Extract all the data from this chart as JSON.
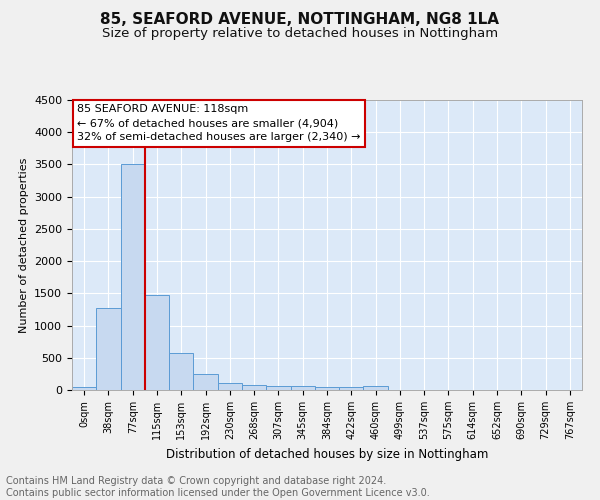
{
  "title": "85, SEAFORD AVENUE, NOTTINGHAM, NG8 1LA",
  "subtitle": "Size of property relative to detached houses in Nottingham",
  "xlabel": "Distribution of detached houses by size in Nottingham",
  "ylabel": "Number of detached properties",
  "bar_labels": [
    "0sqm",
    "38sqm",
    "77sqm",
    "115sqm",
    "153sqm",
    "192sqm",
    "230sqm",
    "268sqm",
    "307sqm",
    "345sqm",
    "384sqm",
    "422sqm",
    "460sqm",
    "499sqm",
    "537sqm",
    "575sqm",
    "614sqm",
    "652sqm",
    "690sqm",
    "729sqm",
    "767sqm"
  ],
  "bar_values": [
    50,
    1280,
    3500,
    1480,
    580,
    255,
    115,
    75,
    55,
    55,
    50,
    50,
    60,
    0,
    0,
    0,
    0,
    0,
    0,
    0,
    0
  ],
  "bar_color": "#c7d9f0",
  "bar_edge_color": "#5b9bd5",
  "ylim": [
    0,
    4500
  ],
  "yticks": [
    0,
    500,
    1000,
    1500,
    2000,
    2500,
    3000,
    3500,
    4000,
    4500
  ],
  "red_line_x": 2.5,
  "annotation_line1": "85 SEAFORD AVENUE: 118sqm",
  "annotation_line2": "← 67% of detached houses are smaller (4,904)",
  "annotation_line3": "32% of semi-detached houses are larger (2,340) →",
  "annotation_box_color": "#ffffff",
  "annotation_box_edge_color": "#cc0000",
  "footer_text": "Contains HM Land Registry data © Crown copyright and database right 2024.\nContains public sector information licensed under the Open Government Licence v3.0.",
  "background_color": "#dce9f8",
  "grid_color": "#ffffff",
  "fig_background": "#f0f0f0",
  "title_fontsize": 11,
  "subtitle_fontsize": 9.5,
  "footer_fontsize": 7,
  "annotation_fontsize": 8
}
